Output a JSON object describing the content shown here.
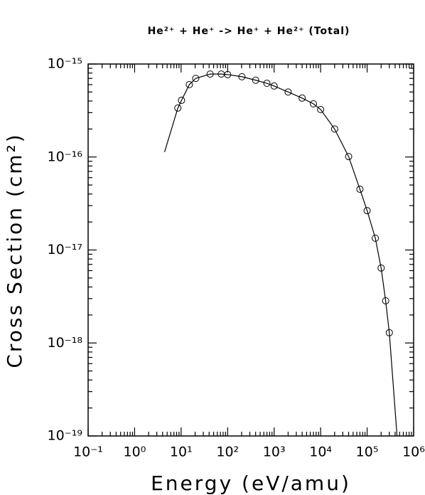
{
  "chart_data": {
    "type": "line",
    "title": "He²⁺ + He⁺ -> He⁺ + He²⁺ (Total)",
    "x_label": "Energy (eV/amu)",
    "y_label": "Cross Section (cm²)",
    "log_x": true,
    "log_y": true,
    "minor_ticks": true,
    "color": "#000000",
    "xlim": [
      0.1,
      1000000
    ],
    "ylim": [
      1e-19,
      1e-15
    ],
    "xticks": [
      {
        "value": 0.1,
        "label": "10⁻¹"
      },
      {
        "value": 1,
        "label": "10⁰"
      },
      {
        "value": 10,
        "label": "10¹"
      },
      {
        "value": 100,
        "label": "10²"
      },
      {
        "value": 1000,
        "label": "10³"
      },
      {
        "value": 10000,
        "label": "10⁴"
      },
      {
        "value": 100000,
        "label": "10⁵"
      },
      {
        "value": 1000000,
        "label": "10⁶"
      }
    ],
    "yticks": [
      {
        "value": 1e-19,
        "label": "10⁻¹⁹"
      },
      {
        "value": 1e-18,
        "label": "10⁻¹⁸"
      },
      {
        "value": 1e-17,
        "label": "10⁻¹⁷"
      },
      {
        "value": 1e-16,
        "label": "10⁻¹⁶"
      },
      {
        "value": 1e-15,
        "label": "10⁻¹⁵"
      }
    ],
    "points": {
      "x": [
        8.5,
        10.2,
        15,
        20.6,
        42,
        73,
        100,
        203,
        400,
        700,
        1000,
        2000,
        4000,
        7000,
        10000,
        20000,
        40000,
        70000,
        100000,
        150000,
        200000,
        250000,
        300000
      ],
      "values": [
        3.36e-16,
        4.07e-16,
        6e-16,
        7e-16,
        7.8e-16,
        7.8e-16,
        7.7e-16,
        7.3e-16,
        6.7e-16,
        6.2e-16,
        5.8e-16,
        5e-16,
        4.3e-16,
        3.73e-16,
        3.24e-16,
        2e-16,
        1.01e-16,
        4.5e-17,
        2.65e-17,
        1.34e-17,
        6.4e-18,
        2.84e-18,
        1.29e-18
      ]
    },
    "fit": {
      "x": [
        4.4,
        8.5,
        10.2,
        15,
        20.6,
        42,
        73,
        100,
        203,
        400,
        700,
        1000,
        2000,
        4000,
        7000,
        10000,
        20000,
        40000,
        70000,
        100000,
        150000,
        200000,
        250000,
        300000,
        440000
      ],
      "values": [
        1.13e-16,
        3.36e-16,
        4.07e-16,
        6e-16,
        7e-16,
        7.8e-16,
        7.8e-16,
        7.7e-16,
        7.3e-16,
        6.7e-16,
        6.2e-16,
        5.8e-16,
        5e-16,
        4.3e-16,
        3.73e-16,
        3.24e-16,
        2e-16,
        1.01e-16,
        4.5e-17,
        2.65e-17,
        1.34e-17,
        6.4e-18,
        2.84e-18,
        1.29e-18,
        1e-19
      ]
    }
  }
}
